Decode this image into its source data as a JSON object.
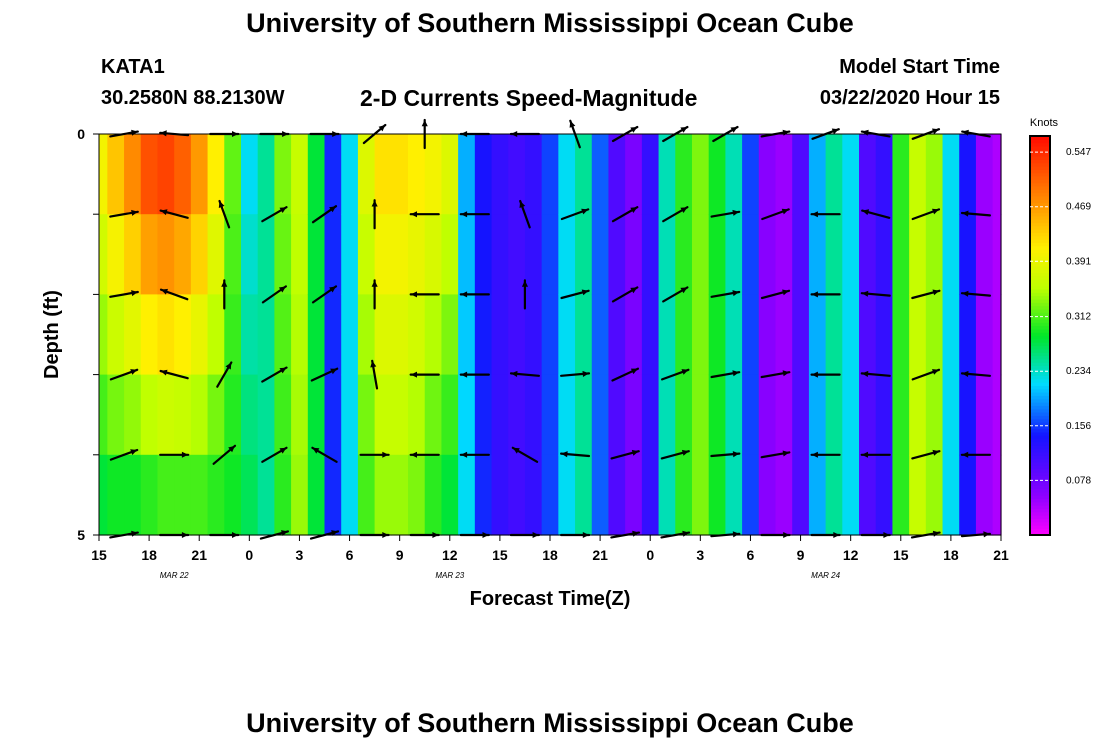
{
  "header": {
    "title": "University of Southern Mississippi Ocean Cube",
    "station": "KATA1",
    "coordinates": "30.2580N 88.2130W",
    "subtitle": "2-D Currents Speed-Magnitude",
    "model_start_label": "Model Start Time",
    "model_start_value": "03/22/2020 Hour 15"
  },
  "footer": {
    "title": "University of Southern Mississippi Ocean Cube"
  },
  "chart_data": {
    "type": "heatmap",
    "title": "2-D Currents Speed-Magnitude",
    "xlabel": "Forecast Time(Z)",
    "ylabel": "Depth (ft)",
    "x_hours_range": [
      0,
      54
    ],
    "x_ticks": [
      "15",
      "18",
      "21",
      "0",
      "3",
      "6",
      "9",
      "12",
      "15",
      "18",
      "21",
      "0",
      "3",
      "6",
      "9",
      "12",
      "15",
      "18",
      "21"
    ],
    "x_tick_hours": [
      0,
      3,
      6,
      9,
      12,
      15,
      18,
      21,
      24,
      27,
      30,
      33,
      36,
      39,
      42,
      45,
      48,
      51,
      54
    ],
    "date_labels": [
      {
        "text": "MAR 22",
        "hour": 4.5
      },
      {
        "text": "MAR 23",
        "hour": 21
      },
      {
        "text": "MAR 24",
        "hour": 43.5
      }
    ],
    "y_range": [
      0,
      5
    ],
    "y_ticks": [
      "0",
      "5"
    ],
    "y_tick_values": [
      0,
      1,
      2,
      3,
      4,
      5
    ],
    "depth_levels": [
      0,
      1,
      2,
      3,
      4,
      5
    ],
    "colorbar": {
      "unit": "Knots",
      "min": 0.0,
      "max": 0.57,
      "tick_values": [
        0.547,
        0.469,
        0.391,
        0.312,
        0.234,
        0.156,
        0.078
      ],
      "tick_labels": [
        "0.547",
        "0.469",
        "0.391",
        "0.312",
        "0.234",
        "0.156",
        "0.078"
      ]
    },
    "speed_profile": {
      "hours": [
        0,
        1,
        2,
        3,
        4,
        5,
        6,
        7,
        8,
        9,
        10,
        11,
        12,
        13,
        14,
        15,
        16,
        17,
        18,
        19,
        20,
        21,
        22,
        23,
        24,
        25,
        26,
        27,
        28,
        29,
        30,
        31,
        32,
        33,
        34,
        35,
        36,
        37,
        38,
        39,
        40,
        41,
        42,
        43,
        44,
        45,
        46,
        47,
        48,
        49,
        50,
        51,
        52,
        53,
        54
      ],
      "surface_knots": [
        0.4,
        0.44,
        0.48,
        0.52,
        0.53,
        0.51,
        0.47,
        0.41,
        0.32,
        0.22,
        0.25,
        0.33,
        0.36,
        0.28,
        0.15,
        0.22,
        0.38,
        0.42,
        0.42,
        0.41,
        0.4,
        0.38,
        0.2,
        0.14,
        0.12,
        0.11,
        0.12,
        0.16,
        0.22,
        0.25,
        0.17,
        0.1,
        0.07,
        0.12,
        0.24,
        0.3,
        0.33,
        0.29,
        0.24,
        0.16,
        0.06,
        0.05,
        0.1,
        0.2,
        0.25,
        0.22,
        0.1,
        0.12,
        0.3,
        0.36,
        0.34,
        0.22,
        0.14,
        0.05,
        0.04
      ],
      "bottom_knots": [
        0.28,
        0.29,
        0.29,
        0.3,
        0.31,
        0.31,
        0.31,
        0.3,
        0.29,
        0.27,
        0.25,
        0.3,
        0.34,
        0.28,
        0.15,
        0.22,
        0.31,
        0.34,
        0.34,
        0.33,
        0.3,
        0.28,
        0.22,
        0.15,
        0.12,
        0.11,
        0.12,
        0.16,
        0.22,
        0.25,
        0.17,
        0.1,
        0.07,
        0.12,
        0.24,
        0.3,
        0.33,
        0.29,
        0.24,
        0.16,
        0.06,
        0.05,
        0.1,
        0.2,
        0.25,
        0.22,
        0.1,
        0.12,
        0.3,
        0.36,
        0.34,
        0.22,
        0.14,
        0.05,
        0.04
      ]
    },
    "vector_hours": [
      1.5,
      4.5,
      7.5,
      10.5,
      13.5,
      16.5,
      19.5,
      22.5,
      25.5,
      28.5,
      31.5,
      34.5,
      37.5,
      40.5,
      43.5,
      46.5,
      49.5,
      52.5
    ],
    "vector_directions_deg": [
      [
        10,
        175,
        0,
        0,
        0,
        40,
        90,
        180,
        180,
        110,
        30,
        30,
        30,
        10,
        20,
        170,
        20,
        170
      ],
      [
        10,
        165,
        110,
        30,
        35,
        90,
        180,
        180,
        110,
        20,
        30,
        30,
        10,
        20,
        180,
        165,
        20,
        175
      ],
      [
        10,
        160,
        90,
        35,
        35,
        90,
        180,
        180,
        90,
        15,
        30,
        30,
        10,
        15,
        180,
        175,
        15,
        175
      ],
      [
        20,
        165,
        60,
        30,
        25,
        100,
        180,
        180,
        175,
        5,
        25,
        20,
        10,
        10,
        180,
        175,
        20,
        175
      ],
      [
        20,
        0,
        40,
        30,
        150,
        0,
        180,
        180,
        150,
        175,
        15,
        15,
        5,
        10,
        180,
        180,
        15,
        180
      ],
      [
        10,
        0,
        0,
        15,
        15,
        0,
        0,
        0,
        0,
        0,
        10,
        10,
        5,
        0,
        0,
        0,
        10,
        5
      ]
    ]
  }
}
